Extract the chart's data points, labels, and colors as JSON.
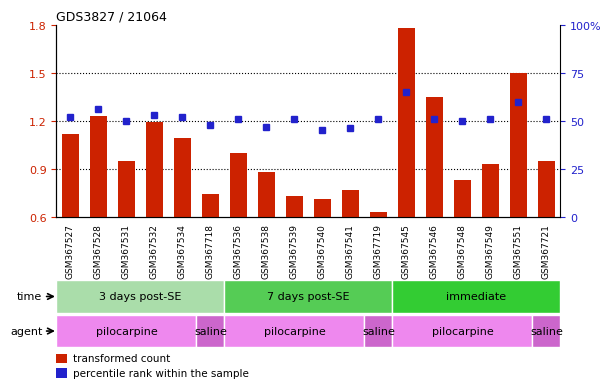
{
  "title": "GDS3827 / 21064",
  "samples": [
    "GSM367527",
    "GSM367528",
    "GSM367531",
    "GSM367532",
    "GSM367534",
    "GSM367718",
    "GSM367536",
    "GSM367538",
    "GSM367539",
    "GSM367540",
    "GSM367541",
    "GSM367719",
    "GSM367545",
    "GSM367546",
    "GSM367548",
    "GSM367549",
    "GSM367551",
    "GSM367721"
  ],
  "bar_values": [
    1.12,
    1.23,
    0.95,
    1.19,
    1.09,
    0.74,
    1.0,
    0.88,
    0.73,
    0.71,
    0.77,
    0.63,
    1.78,
    1.35,
    0.83,
    0.93,
    1.5,
    0.95
  ],
  "dot_values": [
    52,
    56,
    50,
    53,
    52,
    48,
    51,
    47,
    51,
    45,
    46,
    51,
    65,
    51,
    50,
    51,
    60,
    51
  ],
  "bar_color": "#cc2200",
  "dot_color": "#2222cc",
  "ylim_left": [
    0.6,
    1.8
  ],
  "ylim_right": [
    0,
    100
  ],
  "yticks_left": [
    0.6,
    0.9,
    1.2,
    1.5,
    1.8
  ],
  "yticks_right": [
    0,
    25,
    50,
    75,
    100
  ],
  "ytick_labels_right": [
    "0",
    "25",
    "50",
    "75",
    "100%"
  ],
  "hlines": [
    0.9,
    1.2,
    1.5
  ],
  "time_groups": [
    {
      "label": "3 days post-SE",
      "start": 0,
      "end": 5,
      "color": "#aaddaa"
    },
    {
      "label": "7 days post-SE",
      "start": 6,
      "end": 11,
      "color": "#55cc55"
    },
    {
      "label": "immediate",
      "start": 12,
      "end": 17,
      "color": "#33cc33"
    }
  ],
  "agent_groups": [
    {
      "label": "pilocarpine",
      "start": 0,
      "end": 4,
      "color": "#ee88ee"
    },
    {
      "label": "saline",
      "start": 5,
      "end": 5,
      "color": "#cc66cc"
    },
    {
      "label": "pilocarpine",
      "start": 6,
      "end": 10,
      "color": "#ee88ee"
    },
    {
      "label": "saline",
      "start": 11,
      "end": 11,
      "color": "#cc66cc"
    },
    {
      "label": "pilocarpine",
      "start": 12,
      "end": 16,
      "color": "#ee88ee"
    },
    {
      "label": "saline",
      "start": 17,
      "end": 17,
      "color": "#cc66cc"
    }
  ],
  "legend_bar_label": "transformed count",
  "legend_dot_label": "percentile rank within the sample",
  "bg_color": "#ffffff",
  "tick_bg": "#cccccc"
}
